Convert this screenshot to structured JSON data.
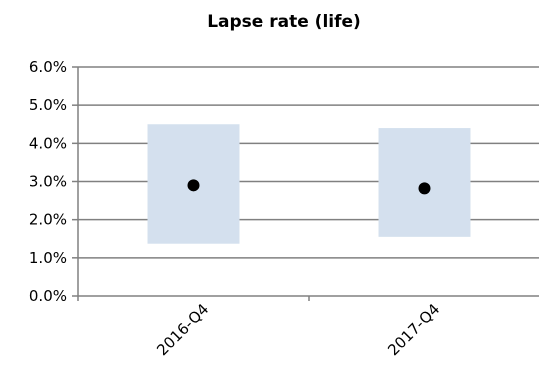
{
  "chart_data": {
    "type": "scatter",
    "title": "Lapse rate (life)",
    "categories": [
      "2016-Q4",
      "2017-Q4"
    ],
    "y_ticks": [
      "0.0%",
      "1.0%",
      "2.0%",
      "3.0%",
      "4.0%",
      "5.0%",
      "6.0%"
    ],
    "ylim": [
      0,
      6
    ],
    "y_unit": "%",
    "grid": true,
    "legend": "none",
    "series": [
      {
        "values": [
          2.9,
          2.82
        ]
      }
    ],
    "ranges": [
      {
        "low": 1.37,
        "high": 4.5
      },
      {
        "low": 1.55,
        "high": 4.4
      }
    ],
    "colors": {
      "range_box": "#d4e0ee",
      "point": "#000000",
      "grid": "#808080"
    }
  }
}
